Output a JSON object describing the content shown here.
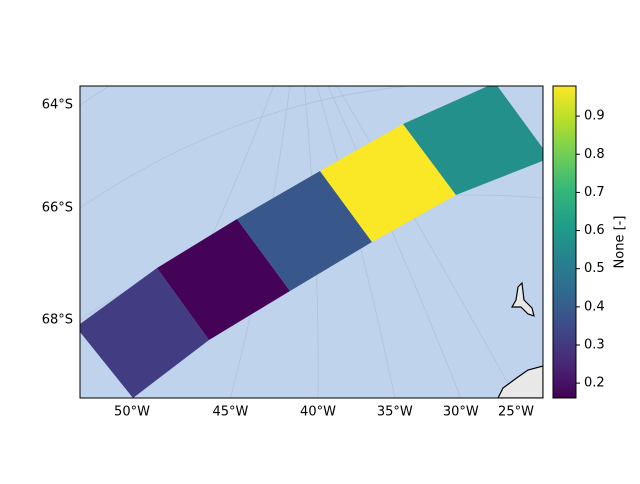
{
  "chart_data": {
    "type": "map",
    "colormap": "viridis",
    "values": [
      0.31,
      0.165,
      0.385,
      0.975,
      0.57
    ],
    "xticks": [
      {
        "value": -50,
        "label": "50°W"
      },
      {
        "value": -45,
        "label": "45°W"
      },
      {
        "value": -40,
        "label": "40°W"
      },
      {
        "value": -35,
        "label": "35°W"
      },
      {
        "value": -30,
        "label": "30°W"
      },
      {
        "value": -25,
        "label": "25°W"
      }
    ],
    "yticks": [
      {
        "value": -64,
        "label": "64°S"
      },
      {
        "value": -66,
        "label": "66°S"
      },
      {
        "value": -68,
        "label": "68°S"
      }
    ],
    "colorbar": {
      "label": "None [-]",
      "lim": [
        0.161,
        0.979
      ],
      "ticks": [
        0.2,
        0.3,
        0.4,
        0.5,
        0.6,
        0.7,
        0.8,
        0.9
      ]
    }
  }
}
